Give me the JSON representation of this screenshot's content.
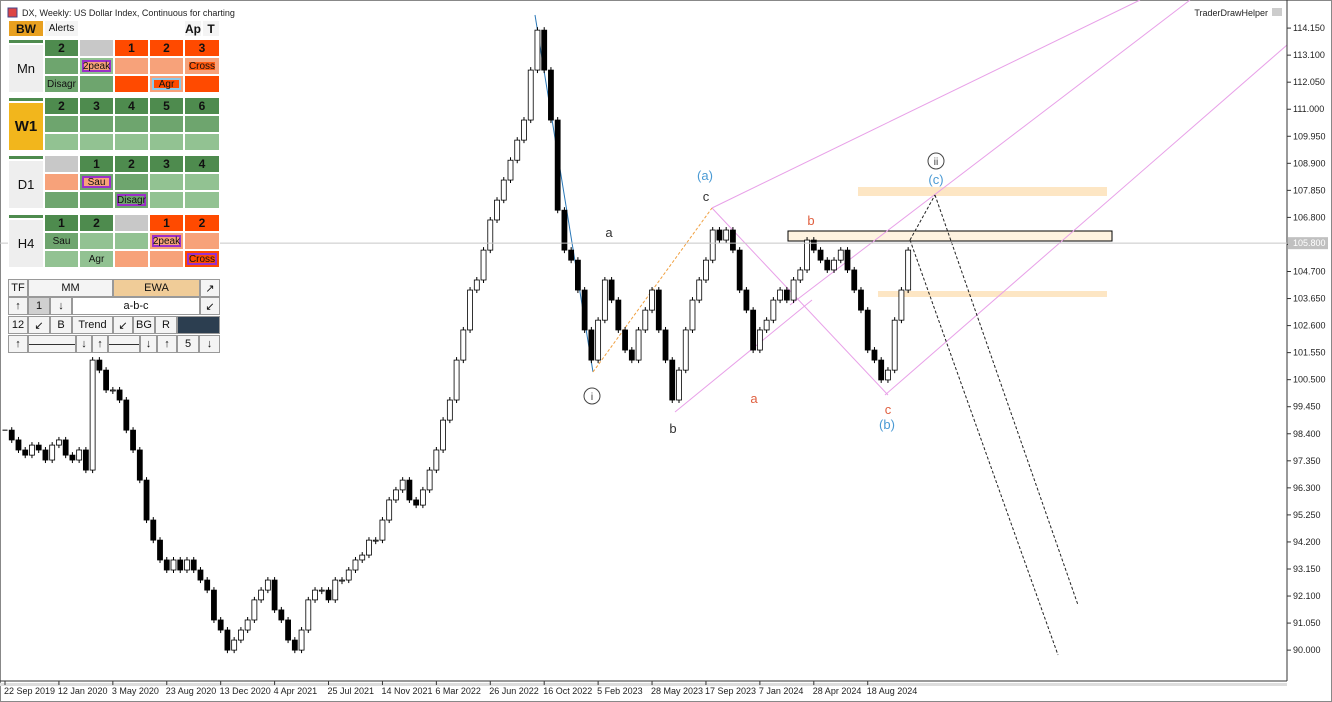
{
  "header": {
    "title": "DX, Weekly:  US Dollar Index, Continuous for charting",
    "plugin": "TraderDrawHelper"
  },
  "chart_data": {
    "type": "candlestick",
    "categories": [
      "22 Sep 2019",
      null,
      null,
      null,
      null,
      null,
      null,
      null,
      "12 Jan 2020",
      null,
      null,
      null,
      null,
      null,
      null,
      null,
      "3 May 2020",
      null,
      null,
      null,
      null,
      null,
      null,
      null,
      "23 Aug 2020",
      null,
      null,
      null,
      null,
      null,
      null,
      null,
      "13 Dec 2020",
      null,
      null,
      null,
      null,
      null,
      null,
      null,
      "4 Apr 2021",
      null,
      null,
      null,
      null,
      null,
      null,
      null,
      "25 Jul 2021",
      null,
      null,
      null,
      null,
      null,
      null,
      null,
      "14 Nov 2021",
      null,
      null,
      null,
      null,
      null,
      null,
      null,
      "6 Mar 2022",
      null,
      null,
      null,
      null,
      null,
      null,
      null,
      "26 Jun 2022",
      null,
      null,
      null,
      null,
      null,
      null,
      null,
      "16 Oct 2022",
      null,
      null,
      null,
      null,
      null,
      null,
      null,
      "5 Feb 2023",
      null,
      null,
      null,
      null,
      null,
      null,
      null,
      "28 May 2023",
      null,
      null,
      null,
      null,
      null,
      null,
      null,
      "17 Sep 2023",
      null,
      null,
      null,
      null,
      null,
      null,
      null,
      "7 Jan 2024",
      null,
      null,
      null,
      null,
      null,
      null,
      null,
      "28 Apr 2024",
      null,
      null,
      null,
      null,
      null,
      null,
      null,
      "18 Aug 2024",
      null,
      null,
      null,
      null,
      null,
      null
    ],
    "values": [
      98.54,
      98.16,
      97.77,
      97.57,
      97.96,
      97.77,
      97.38,
      97.96,
      98.16,
      97.57,
      97.38,
      97.77,
      96.99,
      101.26,
      100.87,
      100.1,
      100.1,
      99.71,
      98.54,
      97.77,
      96.6,
      95.05,
      94.27,
      93.5,
      93.11,
      93.5,
      93.11,
      93.5,
      93.11,
      92.72,
      92.33,
      91.17,
      90.78,
      90.0,
      90.39,
      90.78,
      91.17,
      91.95,
      92.33,
      92.72,
      91.56,
      91.17,
      90.39,
      90.0,
      90.78,
      91.95,
      92.33,
      92.33,
      91.95,
      92.72,
      92.72,
      93.11,
      93.5,
      93.69,
      94.27,
      94.27,
      95.05,
      95.83,
      96.22,
      96.6,
      95.83,
      95.63,
      96.22,
      96.99,
      97.77,
      98.93,
      99.71,
      101.26,
      102.43,
      103.98,
      104.37,
      105.53,
      106.7,
      107.47,
      108.25,
      109.02,
      109.8,
      110.58,
      112.52,
      114.07,
      112.52,
      110.58,
      107.08,
      105.53,
      105.14,
      103.98,
      102.43,
      101.26,
      102.81,
      104.37,
      103.59,
      102.43,
      101.65,
      101.26,
      102.43,
      103.2,
      103.98,
      102.43,
      101.26,
      99.71,
      100.87,
      102.43,
      103.59,
      104.37,
      105.14,
      106.31,
      105.92,
      106.31,
      105.53,
      103.98,
      103.2,
      101.65,
      102.43,
      102.81,
      103.59,
      103.98,
      103.59,
      104.37,
      104.76,
      105.92,
      105.53,
      105.14,
      104.76,
      105.14,
      105.53,
      104.76,
      103.98,
      103.2,
      101.65,
      101.26,
      100.49,
      100.87,
      102.81,
      103.98,
      105.53
    ],
    "ylim": [
      88.84,
      114.93
    ],
    "yticks": [
      {
        "value": 114.15,
        "label": "114.150"
      },
      {
        "value": 113.1,
        "label": "113.100"
      },
      {
        "value": 112.05,
        "label": "112.050"
      },
      {
        "value": 111.0,
        "label": "111.000"
      },
      {
        "value": 109.95,
        "label": "109.950"
      },
      {
        "value": 108.9,
        "label": "108.900"
      },
      {
        "value": 107.85,
        "label": "107.850"
      },
      {
        "value": 106.8,
        "label": "106.800"
      },
      {
        "value": 105.75,
        "label": "105.750"
      },
      {
        "value": 104.7,
        "label": "104.700"
      },
      {
        "value": 103.65,
        "label": "103.650"
      },
      {
        "value": 102.6,
        "label": "102.600"
      },
      {
        "value": 101.55,
        "label": "101.550"
      },
      {
        "value": 100.5,
        "label": "100.500"
      },
      {
        "value": 99.45,
        "label": "99.450"
      },
      {
        "value": 98.4,
        "label": "98.400"
      },
      {
        "value": 97.35,
        "label": "97.350"
      },
      {
        "value": 96.3,
        "label": "96.300"
      },
      {
        "value": 95.25,
        "label": "95.250"
      },
      {
        "value": 94.2,
        "label": "94.200"
      },
      {
        "value": 93.15,
        "label": "93.150"
      },
      {
        "value": 92.1,
        "label": "92.100"
      },
      {
        "value": 91.05,
        "label": "91.050"
      },
      {
        "value": 90.0,
        "label": "90.000"
      }
    ],
    "last_price": {
      "value": 105.8,
      "label": "105.800"
    },
    "up_color": "#ffffff",
    "down_color": "#000000",
    "grid": false,
    "annotations": [
      {
        "text": "(a)"
      },
      {
        "text": "c"
      },
      {
        "text": "a"
      },
      {
        "text": "i"
      },
      {
        "text": "b"
      },
      {
        "text": "a"
      },
      {
        "text": "b"
      },
      {
        "text": "c"
      },
      {
        "text": "(b)"
      },
      {
        "text": "ii"
      },
      {
        "text": "(c)"
      }
    ]
  },
  "panel": {
    "tabs": [
      "BW",
      "Alerts",
      "Ap",
      "T"
    ],
    "mn": {
      "label": "Mn",
      "row1": [
        "2",
        "1",
        "2",
        "3"
      ],
      "row2": [
        "2peak",
        "Cross"
      ],
      "row3": [
        "Disagr",
        "Agr"
      ]
    },
    "w1": {
      "label": "W1",
      "row1": [
        "2",
        "3",
        "4",
        "5",
        "6"
      ]
    },
    "d1": {
      "label": "D1",
      "row1": [
        "1",
        "2",
        "3",
        "4"
      ],
      "row2": [
        "Sau"
      ],
      "row3": [
        "Disagr"
      ]
    },
    "h4": {
      "label": "H4",
      "row1": [
        "1",
        "2",
        "1",
        "2"
      ],
      "row2": [
        "Sau",
        "2peak"
      ],
      "row3": [
        "Agr",
        "Cross"
      ]
    },
    "controls": [
      [
        "TF",
        "MM",
        "EWA",
        "↗"
      ],
      [
        "↑",
        "1",
        "↓",
        "a-b-c",
        "↙"
      ],
      [
        "12",
        "↙",
        "B",
        "Trend",
        "↙",
        "BG",
        "R"
      ],
      [
        "↑",
        "↓",
        "↑",
        "↓",
        "↑",
        "5",
        "↓"
      ]
    ]
  }
}
